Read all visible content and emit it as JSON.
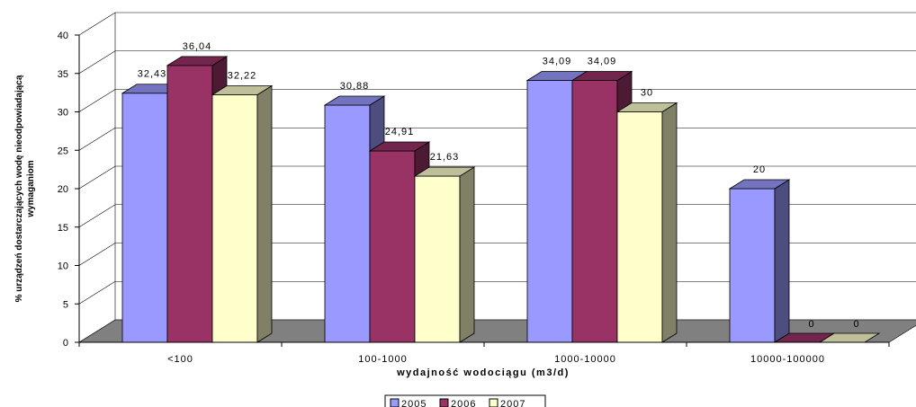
{
  "chart_data": {
    "type": "bar",
    "categories": [
      "<100",
      "100-1000",
      "1000-10000",
      "10000-100000"
    ],
    "series": [
      {
        "name": "2005",
        "values": [
          32.43,
          30.88,
          34.09,
          20
        ],
        "labels": [
          "32,43",
          "30,88",
          "34,09",
          "20"
        ]
      },
      {
        "name": "2006",
        "values": [
          36.04,
          24.91,
          34.09,
          0
        ],
        "labels": [
          "36,04",
          "24,91",
          "34,09",
          "0"
        ]
      },
      {
        "name": "2007",
        "values": [
          32.22,
          21.63,
          30,
          0
        ],
        "labels": [
          "32,22",
          "21,63",
          "30",
          "0"
        ]
      }
    ],
    "xlabel": "wydajność wodociągu (m3/d)",
    "ylabel": [
      "% urządzeń dostarczających wodę nieodpowiadającą",
      "wymaganiom"
    ],
    "ylim": [
      0,
      40
    ],
    "yticks": [
      0,
      5,
      10,
      15,
      20,
      25,
      30,
      35,
      40
    ],
    "grid": true,
    "three_d": true,
    "legend_position": "bottom",
    "colors": {
      "series_front": [
        "#9999ff",
        "#993366",
        "#ffffcc"
      ],
      "series_side": [
        "#4d4d80",
        "#4d1a33",
        "#808066"
      ],
      "series_top": [
        "#7373bf",
        "#73264d",
        "#bfbf99"
      ],
      "floor": "#808080",
      "grid": "#000000"
    }
  }
}
